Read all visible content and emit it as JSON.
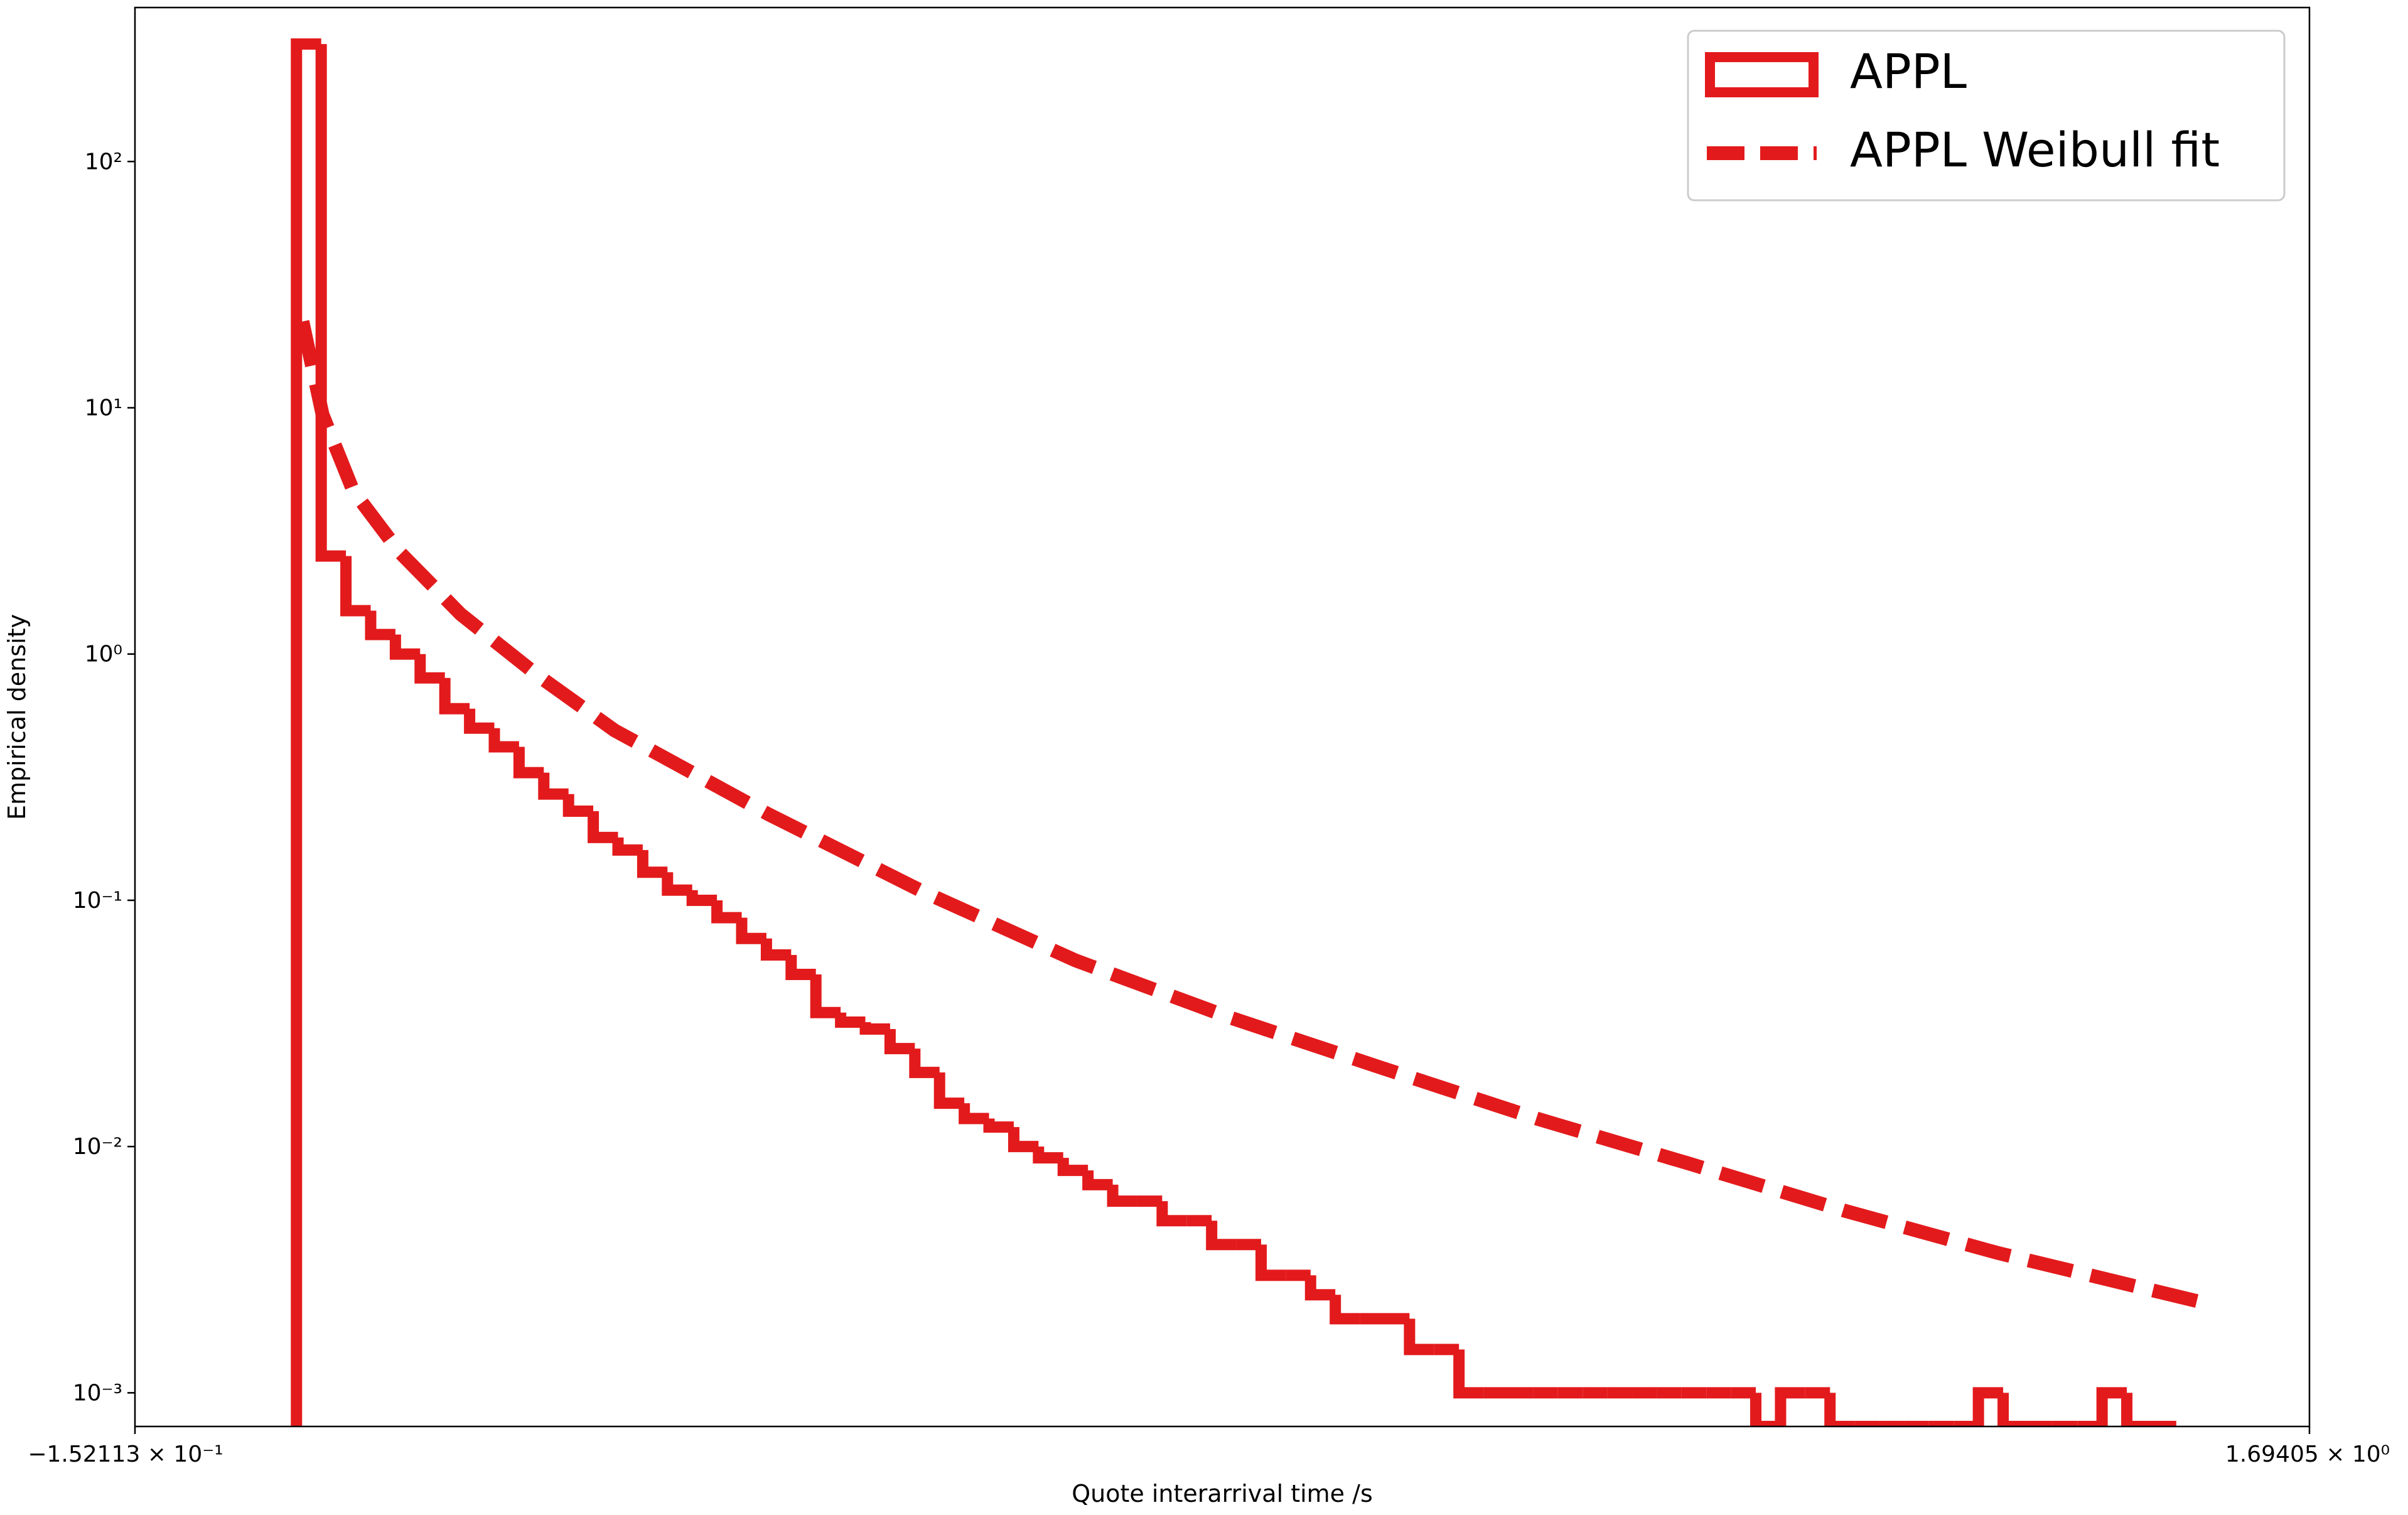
{
  "chart_data": {
    "type": "histogram",
    "xlabel": "Quote interarrival time /s",
    "ylabel": "Empirical density",
    "xlim": [
      -0.152113,
      1.69405
    ],
    "xticks": [
      {
        "value": -0.152113,
        "label": "−1.52113 × 10⁻¹"
      },
      {
        "value": 1.69405,
        "label": "1.69405 × 10⁰"
      }
    ],
    "ylim": [
      0.00073,
      422
    ],
    "yticks": [
      {
        "value": 0.001,
        "label": "10⁻³"
      },
      {
        "value": 0.01,
        "label": "10⁻²"
      },
      {
        "value": 0.1,
        "label": "10⁻¹"
      },
      {
        "value": 1,
        "label": "10⁰"
      },
      {
        "value": 10,
        "label": "10¹"
      },
      {
        "value": 100,
        "label": "10²"
      }
    ],
    "ylog": true,
    "legend": "upper right",
    "series": [
      {
        "name": "APPL",
        "type": "histogram",
        "color": "#e31a1c",
        "bins": [
          -0.015,
          0.006,
          0.027,
          0.048,
          0.069,
          0.09,
          0.111,
          0.132,
          0.153,
          0.174,
          0.195,
          0.216,
          0.237,
          0.258,
          0.279,
          0.3,
          0.321,
          0.342,
          0.363,
          0.384,
          0.405,
          0.426,
          0.447,
          0.468,
          0.489,
          0.51,
          0.531,
          0.552,
          0.573,
          0.594,
          0.615,
          0.636,
          0.657,
          0.678,
          0.699,
          0.72,
          0.741,
          0.762,
          0.783,
          0.804,
          0.825,
          0.846,
          0.867,
          0.888,
          0.909,
          0.93,
          0.951,
          0.972,
          0.993,
          1.014,
          1.035,
          1.056,
          1.077,
          1.098,
          1.119,
          1.14,
          1.161,
          1.182,
          1.203,
          1.224,
          1.245,
          1.266,
          1.287,
          1.308,
          1.329,
          1.35,
          1.371,
          1.392,
          1.413,
          1.434,
          1.455,
          1.476,
          1.497,
          1.518,
          1.539,
          1.56,
          1.581
        ],
        "values": [
          300,
          2.5,
          1.5,
          1.2,
          1.0,
          0.8,
          0.6,
          0.5,
          0.42,
          0.33,
          0.27,
          0.23,
          0.18,
          0.16,
          0.13,
          0.11,
          0.1,
          0.085,
          0.07,
          0.06,
          0.05,
          0.035,
          0.032,
          0.03,
          0.025,
          0.02,
          0.015,
          0.013,
          0.012,
          0.01,
          0.009,
          0.008,
          0.007,
          0.006,
          0.006,
          0.005,
          0.005,
          0.004,
          0.004,
          0.003,
          0.003,
          0.0025,
          0.002,
          0.002,
          0.002,
          0.0015,
          0.0015,
          0.001,
          0.001,
          0.001,
          0.001,
          0.001,
          0.001,
          0.001,
          0.001,
          0.001,
          0.001,
          0.001,
          0.001,
          0,
          0.001,
          0.001,
          0,
          0,
          0,
          0,
          0,
          0,
          0.001,
          0,
          0,
          0,
          0,
          0.001,
          0,
          0
        ]
      },
      {
        "name": "APPL Weibull fit",
        "type": "line",
        "color": "#e31a1c",
        "linestyle": "dashed",
        "x": [
          -0.0099,
          0.0071,
          0.0332,
          0.0723,
          0.1245,
          0.1897,
          0.255,
          0.3854,
          0.5159,
          0.6464,
          0.7768,
          0.9073,
          1.0378,
          1.1683,
          1.2987,
          1.4292,
          1.6079
        ],
        "values": [
          22.4,
          9.4,
          4.6,
          2.6,
          1.45,
          0.82,
          0.49,
          0.224,
          0.109,
          0.057,
          0.0335,
          0.0208,
          0.013,
          0.0085,
          0.0055,
          0.0037,
          0.0023
        ]
      }
    ]
  }
}
